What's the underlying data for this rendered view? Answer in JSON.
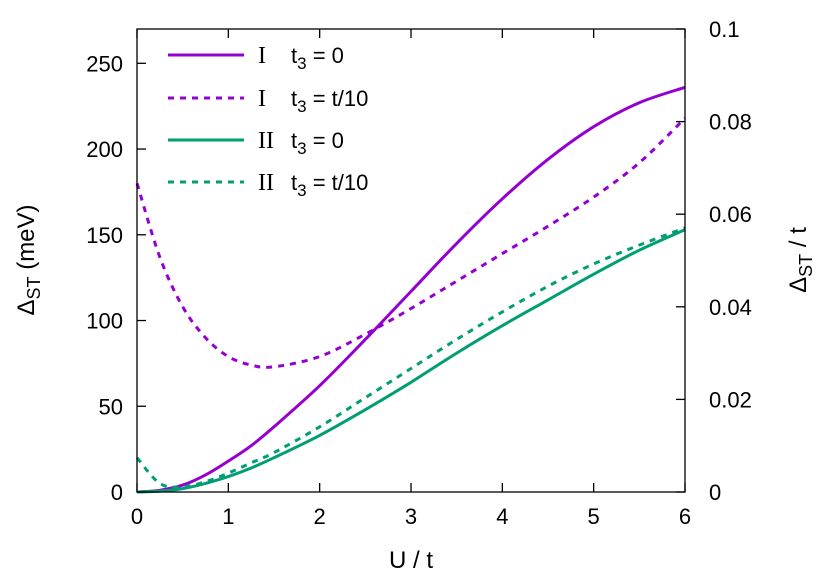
{
  "chart_data": {
    "type": "line",
    "title": "",
    "x": [
      0,
      0.25,
      0.5,
      0.75,
      1,
      1.25,
      1.5,
      2,
      2.5,
      3,
      3.5,
      4,
      4.5,
      5,
      5.5,
      6
    ],
    "xlim": [
      0,
      6
    ],
    "ylim": [
      0,
      270
    ],
    "y2lim": [
      0,
      0.1
    ],
    "xticks": [
      "0",
      "1",
      "2",
      "3",
      "4",
      "5",
      "6"
    ],
    "yticks": [
      "0",
      "50",
      "100",
      "150",
      "200",
      "250"
    ],
    "y2ticks": [
      "0",
      "0.02",
      "0.04",
      "0.06",
      "0.08",
      "0.1"
    ],
    "xlabel": {
      "main": "U / t"
    },
    "ylabel": {
      "delta": "Δ",
      "sub": "ST",
      "rest": " (meV)"
    },
    "y2label": {
      "delta": "Δ",
      "sub": "ST",
      "rest": " / t"
    },
    "legend_position": "top-left",
    "grid": false,
    "series": [
      {
        "numeral": "I",
        "t_main": "t",
        "t_sub": "3",
        "t_rest": " = 0",
        "color": "#9400d3",
        "dash": "solid",
        "values": [
          0,
          1,
          4,
          10,
          18,
          27,
          38,
          62,
          89,
          117,
          145,
          171,
          194,
          213,
          227,
          236
        ]
      },
      {
        "numeral": "I",
        "t_main": "t",
        "t_sub": "3",
        "t_rest": " = t/10",
        "color": "#9400d3",
        "dash": "dashed",
        "values": [
          180,
          137,
          108,
          90,
          79,
          74,
          73,
          79,
          92,
          107,
          123,
          139,
          155,
          172,
          192,
          218
        ]
      },
      {
        "numeral": "II",
        "t_main": "t",
        "t_sub": "3",
        "t_rest": " = 0",
        "color": "#009e73",
        "dash": "solid",
        "values": [
          0,
          0.5,
          2,
          5,
          9,
          14,
          20,
          33,
          48,
          64,
          81,
          97,
          112,
          127,
          141,
          153
        ]
      },
      {
        "numeral": "II",
        "t_main": "t",
        "t_sub": "3",
        "t_rest": " = t/10",
        "color": "#009e73",
        "dash": "dashed",
        "values": [
          20,
          5,
          3,
          6,
          11,
          17,
          23,
          38,
          55,
          72,
          89,
          105,
          120,
          133,
          144,
          154
        ]
      }
    ]
  }
}
